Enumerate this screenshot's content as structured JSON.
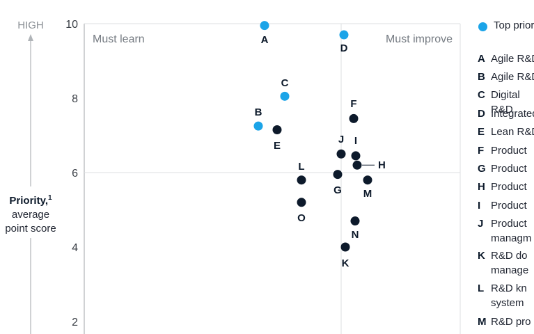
{
  "colors": {
    "top_priority": "#1ba4e8",
    "other": "#0d1a2b",
    "axis": "#b0b4b8",
    "grid": "#dcdfe2",
    "label_gray": "#757b82"
  },
  "y_axis": {
    "high_label": "HIGH",
    "title_line1": "Priority,",
    "title_sup": "1",
    "title_line2": "average",
    "title_line3": "point score"
  },
  "quadrants": {
    "top_left": "Must learn",
    "top_right": "Must improve"
  },
  "legend": {
    "top_priority_label": "Top priority",
    "items": [
      {
        "letter": "A",
        "text": "Agile R&D"
      },
      {
        "letter": "B",
        "text": "Agile R&D"
      },
      {
        "letter": "C",
        "text": "Digital R&D"
      },
      {
        "letter": "D",
        "text": "Integrated"
      },
      {
        "letter": "E",
        "text": "Lean R&D"
      },
      {
        "letter": "F",
        "text": "Product"
      },
      {
        "letter": "G",
        "text": "Product"
      },
      {
        "letter": "H",
        "text": "Product"
      },
      {
        "letter": "I",
        "text": "Product"
      },
      {
        "letter": "J",
        "text": "Product managm"
      },
      {
        "letter": "K",
        "text": "R&D do manage"
      },
      {
        "letter": "L",
        "text": "R&D kn system"
      },
      {
        "letter": "M",
        "text": "R&D pro"
      }
    ]
  },
  "chart_data": {
    "type": "scatter",
    "ylabel": "Priority, average point score",
    "ylim": [
      2,
      10
    ],
    "yticks": [
      2,
      4,
      6,
      8,
      10
    ],
    "y_reference_line": 6,
    "series": [
      {
        "name": "Top priority",
        "points": [
          {
            "label": "A",
            "y": 9.95
          },
          {
            "label": "B",
            "y": 7.25
          },
          {
            "label": "C",
            "y": 8.05
          },
          {
            "label": "D",
            "y": 9.7
          }
        ]
      },
      {
        "points": [
          {
            "label": "E",
            "y": 7.15
          },
          {
            "label": "F",
            "y": 7.45
          },
          {
            "label": "G",
            "y": 5.95
          },
          {
            "label": "H",
            "y": 6.2
          },
          {
            "label": "I",
            "y": 6.45
          },
          {
            "label": "J",
            "y": 6.5
          },
          {
            "label": "K",
            "y": 4.0
          },
          {
            "label": "L",
            "y": 5.8
          },
          {
            "label": "M",
            "y": 5.8
          },
          {
            "label": "N",
            "y": 4.7
          },
          {
            "label": "O",
            "y": 5.2
          }
        ]
      }
    ]
  }
}
